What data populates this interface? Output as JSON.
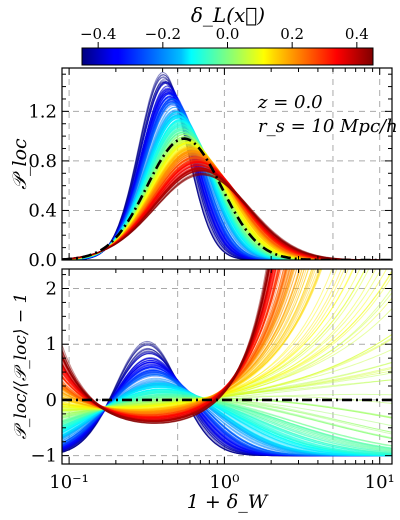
{
  "colorbar": {
    "label": "δ_L(x⃗)",
    "ticks": [
      -0.4,
      -0.2,
      0.0,
      0.2,
      0.4
    ],
    "tick_labels": [
      "−0.4",
      "−0.2",
      "0.0",
      "0.2",
      "0.4"
    ],
    "range": [
      -0.45,
      0.45
    ],
    "colormap": "jet"
  },
  "chart_data": [
    {
      "type": "line",
      "panel": "top",
      "ylabel": "𝒫_loc",
      "xlabel": "",
      "xscale": "log",
      "xlim": [
        0.09,
        12
      ],
      "ylim": [
        0.0,
        1.55
      ],
      "yticks": [
        0.0,
        0.4,
        0.8,
        1.2
      ],
      "ytick_labels": [
        "0.0",
        "0.4",
        "0.8",
        "1.2"
      ],
      "grid": true,
      "annotations": [
        "z = 0.0",
        "r_s = 10 Mpc/h"
      ],
      "model": "lognormal per curve",
      "series_params_by_delta": [
        {
          "delta": -0.4,
          "peak_x": 0.42,
          "peak_y": 1.42,
          "width": 0.38
        },
        {
          "delta": 0.0,
          "peak_x": 0.55,
          "peak_y": 1.0,
          "width": 0.53
        },
        {
          "delta": 0.4,
          "peak_x": 0.7,
          "peak_y": 0.73,
          "width": 0.68
        }
      ],
      "mean_curve": {
        "style": "dash-dot",
        "peak_x": 0.55,
        "peak_y": 0.98,
        "width": 0.55
      }
    },
    {
      "type": "line",
      "panel": "bottom",
      "ylabel": "𝒫_loc/⟨𝒫_loc⟩ − 1",
      "xlabel": "1 + δ_W",
      "xscale": "log",
      "xlim": [
        0.09,
        12
      ],
      "ylim": [
        -1.15,
        2.35
      ],
      "yticks": [
        -1,
        0,
        1,
        2
      ],
      "ytick_labels": [
        "−1",
        "0",
        "1",
        "2"
      ],
      "xticks": [
        0.1,
        1,
        10
      ],
      "xtick_labels": [
        "10⁻¹",
        "10⁰",
        "10¹"
      ],
      "grid": true,
      "reference_line": {
        "y": 0,
        "style": "dash-dot"
      }
    }
  ]
}
